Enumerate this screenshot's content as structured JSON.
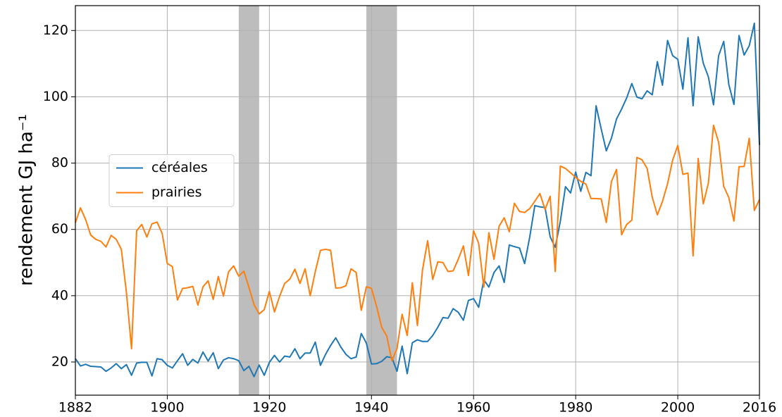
{
  "chart_data": {
    "type": "line",
    "ylabel": "rendement GJ ha⁻¹",
    "x": [
      1882,
      1883,
      1884,
      1885,
      1886,
      1887,
      1888,
      1889,
      1890,
      1891,
      1892,
      1893,
      1894,
      1895,
      1896,
      1897,
      1898,
      1899,
      1900,
      1901,
      1902,
      1903,
      1904,
      1905,
      1906,
      1907,
      1908,
      1909,
      1910,
      1911,
      1912,
      1913,
      1914,
      1915,
      1916,
      1917,
      1918,
      1919,
      1920,
      1921,
      1922,
      1923,
      1924,
      1925,
      1926,
      1927,
      1928,
      1929,
      1930,
      1931,
      1932,
      1933,
      1934,
      1935,
      1936,
      1937,
      1938,
      1939,
      1940,
      1941,
      1942,
      1943,
      1944,
      1945,
      1946,
      1947,
      1948,
      1949,
      1950,
      1951,
      1952,
      1953,
      1954,
      1955,
      1956,
      1957,
      1958,
      1959,
      1960,
      1961,
      1962,
      1963,
      1964,
      1965,
      1966,
      1967,
      1968,
      1969,
      1970,
      1971,
      1972,
      1973,
      1974,
      1975,
      1976,
      1977,
      1978,
      1979,
      1980,
      1981,
      1982,
      1983,
      1984,
      1985,
      1986,
      1987,
      1988,
      1989,
      1990,
      1991,
      1992,
      1993,
      1994,
      1995,
      1996,
      1997,
      1998,
      1999,
      2000,
      2001,
      2002,
      2003,
      2004,
      2005,
      2006,
      2007,
      2008,
      2009,
      2010,
      2011,
      2012,
      2013,
      2014,
      2015,
      2016
    ],
    "series": [
      {
        "name": "céréales",
        "color": "#1f77b4",
        "values": [
          21,
          18.8,
          19.3,
          18.7,
          18.6,
          18.5,
          17.2,
          18.2,
          19.5,
          18,
          19.2,
          16,
          19.7,
          19.9,
          19.9,
          15.8,
          21,
          20.7,
          19,
          18.2,
          20.4,
          22.5,
          19,
          20.8,
          19.7,
          23,
          20.3,
          22.8,
          18,
          20.6,
          21.3,
          21,
          20.4,
          17.4,
          18.7,
          15.6,
          19.1,
          16,
          19.9,
          22,
          20,
          21.8,
          21.5,
          24,
          21,
          22.7,
          22.7,
          26,
          19,
          22.3,
          25,
          27.3,
          24.5,
          22.3,
          21,
          21.5,
          28.6,
          25.7,
          19.4,
          19.5,
          20.2,
          21.6,
          21.3,
          17.2,
          24.8,
          16.5,
          25.8,
          26.7,
          26.2,
          26.2,
          28,
          30.5,
          33.4,
          33.2,
          36.1,
          35,
          32.6,
          38.6,
          39.1,
          36.5,
          44.8,
          42.6,
          47,
          49,
          44,
          55.3,
          54.8,
          54.4,
          49.7,
          57.7,
          67.2,
          66.8,
          66.6,
          57.8,
          54.6,
          62.5,
          72.9,
          71,
          77.3,
          71.5,
          77.2,
          76.2,
          97.3,
          90.3,
          83.7,
          87.5,
          93.3,
          96.3,
          99.7,
          104,
          99.9,
          99.4,
          101.8,
          100.6,
          110.6,
          103.5,
          117,
          112.4,
          111.3,
          102.3,
          117.8,
          97.3,
          118.1,
          110.1,
          106,
          97.6,
          112.4,
          116.7,
          103.7,
          97.7,
          118.5,
          112.6,
          115.4,
          122.2,
          85.5
        ]
      },
      {
        "name": "prairies",
        "color": "#ff7f0e",
        "values": [
          62,
          66.5,
          63,
          58.3,
          57,
          56.4,
          54.7,
          58.2,
          57,
          54,
          41,
          24,
          59.6,
          61.5,
          57.7,
          61.7,
          62.2,
          58.8,
          49.7,
          48.8,
          38.7,
          42.2,
          42.4,
          42.8,
          37.2,
          42.7,
          44.5,
          38.9,
          45.8,
          39.9,
          47.2,
          49,
          45.9,
          47.4,
          42.5,
          37.3,
          34.5,
          35.8,
          41.3,
          35.1,
          39.8,
          43.7,
          45,
          48,
          43.7,
          48.1,
          40,
          47.3,
          53.7,
          54,
          53.7,
          42.3,
          42.4,
          43,
          48.1,
          47,
          35.6,
          42.7,
          42.2,
          36.8,
          30.5,
          27.8,
          20.4,
          24,
          34.4,
          28,
          43.9,
          31,
          47.8,
          56.6,
          44.9,
          50.2,
          50,
          47.3,
          47.5,
          51,
          55,
          46.1,
          59.6,
          55.8,
          42.6,
          59,
          51,
          61,
          63.5,
          59.3,
          67.9,
          65.4,
          65.1,
          66.3,
          68.5,
          70.8,
          66,
          70,
          47.3,
          79.1,
          78.4,
          77.1,
          75.7,
          74.5,
          73.7,
          69.3,
          69.3,
          69.2,
          62.1,
          74.4,
          78.1,
          58.4,
          61.5,
          62.8,
          81.7,
          81,
          78.4,
          69.7,
          64.4,
          68.4,
          73.8,
          80.9,
          85.3,
          76.6,
          77,
          52,
          81.4,
          67.7,
          74,
          91.4,
          86.3,
          73,
          69.6,
          62.5,
          78.9,
          79,
          87.5,
          65.7,
          69
        ]
      }
    ],
    "shaded": [
      [
        1914,
        1918
      ],
      [
        1939,
        1945
      ]
    ],
    "shade_color": "#bdbdbd",
    "xlim": [
      1882,
      2016
    ],
    "xticks": [
      1882,
      1900,
      1920,
      1940,
      1960,
      1980,
      2000,
      2016
    ],
    "ylim": [
      10,
      127.5
    ],
    "yticks": [
      20,
      40,
      60,
      80,
      100,
      120
    ],
    "grid": true,
    "legend": "center left"
  }
}
